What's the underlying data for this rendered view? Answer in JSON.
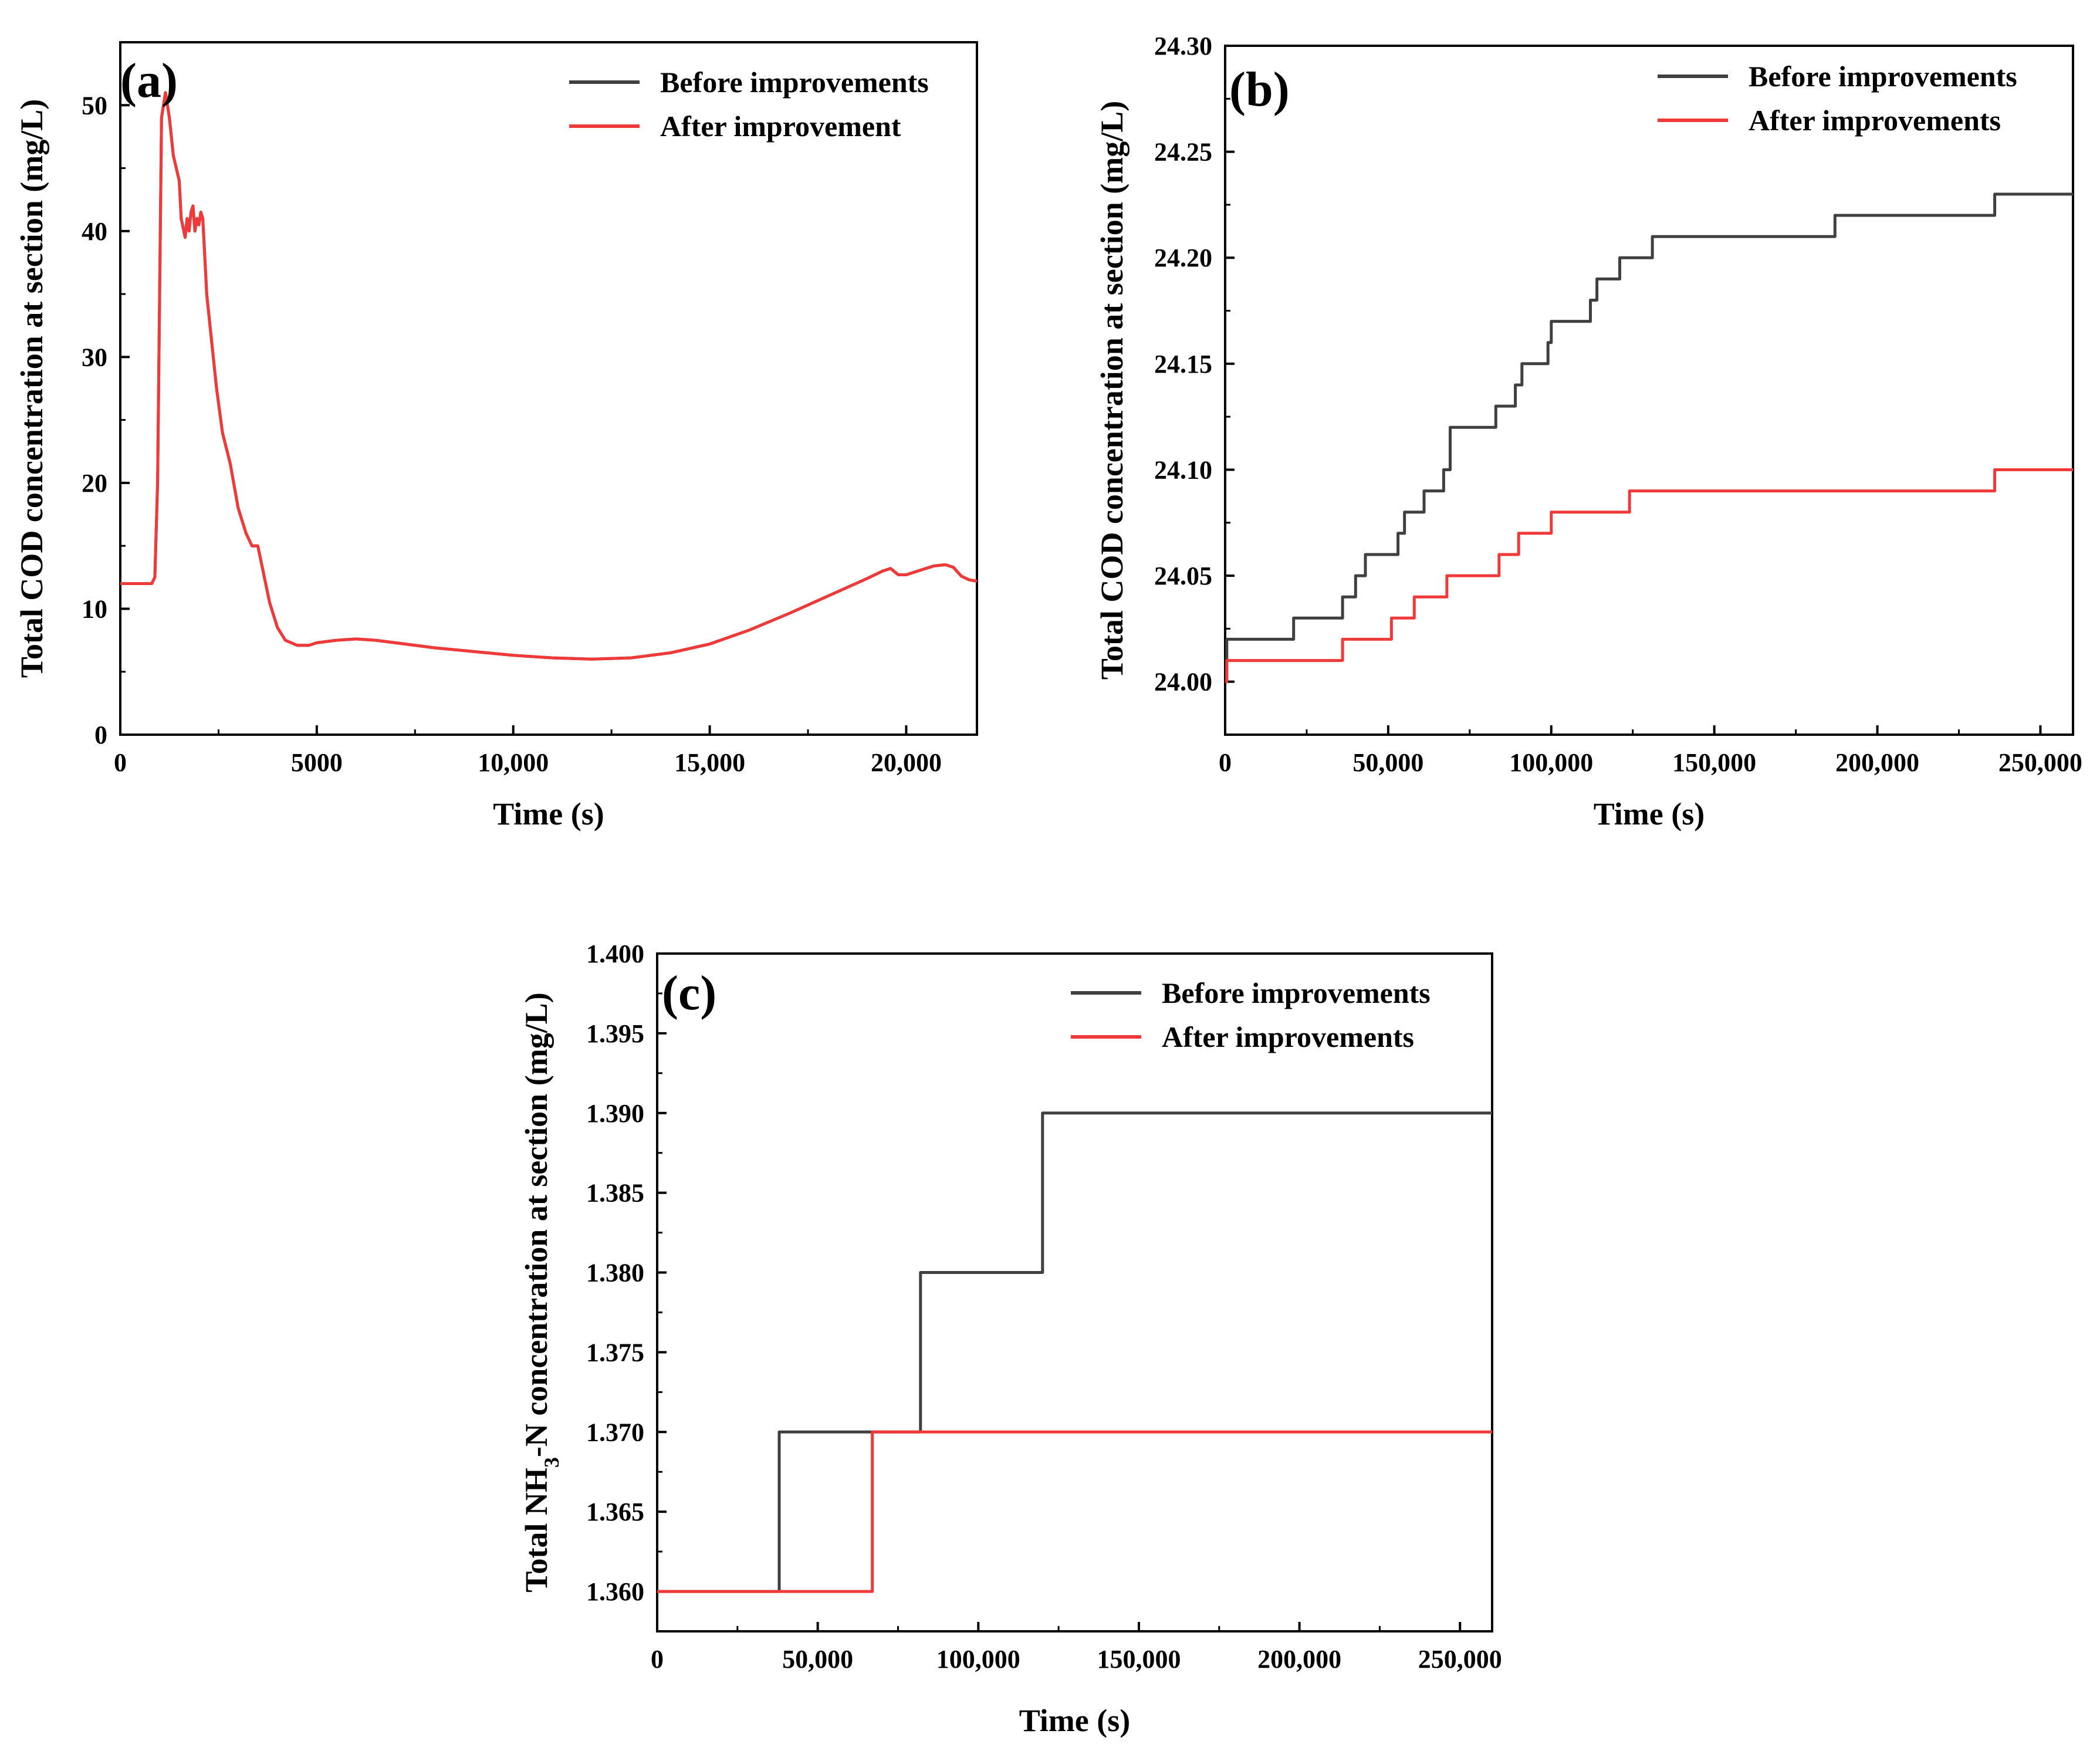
{
  "chart_data": [
    {
      "type": "line",
      "panel_label": "(a)",
      "xlabel": "Time (s)",
      "ylabel": "Total COD concentration at section (mg/L)",
      "xlim": [
        0,
        21800
      ],
      "ylim": [
        0,
        55
      ],
      "x_ticks": [
        0,
        5000,
        10000,
        15000,
        20000
      ],
      "x_tick_labels": [
        "0",
        "5000",
        "10,000",
        "15,000",
        "20,000"
      ],
      "y_ticks": [
        0,
        10,
        20,
        30,
        40,
        50
      ],
      "y_tick_labels": [
        "0",
        "10",
        "20",
        "30",
        "40",
        "50"
      ],
      "legend_position": "top-right",
      "legend": [
        "Before improvements",
        "After improvement"
      ],
      "series": [
        {
          "name": "Before improvements",
          "color": "#404040",
          "step": false,
          "x": [
            0,
            700,
            800,
            880,
            950,
            1050,
            1150,
            1250,
            1350,
            1500,
            1550,
            1650,
            1700,
            1750,
            1800,
            1850,
            1900,
            1950,
            2000,
            2050,
            2100,
            2150,
            2200,
            2300,
            2450,
            2600,
            2800,
            3000,
            3200,
            3350,
            3500,
            3600,
            3700,
            3800,
            4000,
            4200,
            4500,
            4800,
            5000,
            5500,
            6000,
            6500,
            7000,
            8000,
            9000,
            10000,
            11000,
            12000,
            13000,
            14000,
            15000,
            16000,
            17000,
            18000,
            19000,
            19400,
            19600,
            19800,
            20000,
            20400,
            20700,
            21000,
            21200,
            21400,
            21600,
            21800
          ],
          "y": [
            12,
            12,
            12,
            12.5,
            20,
            49,
            51,
            49,
            46,
            44,
            41,
            39.5,
            41,
            40,
            41.5,
            42,
            40,
            41,
            40.5,
            41.5,
            41,
            38,
            35,
            32,
            27.5,
            24,
            21.5,
            18,
            16,
            15,
            15,
            13.5,
            12,
            10.5,
            8.5,
            7.5,
            7.1,
            7.1,
            7.3,
            7.5,
            7.6,
            7.5,
            7.3,
            6.9,
            6.6,
            6.3,
            6.1,
            6.0,
            6.1,
            6.5,
            7.2,
            8.3,
            9.6,
            11,
            12.4,
            13,
            13.2,
            12.7,
            12.7,
            13.1,
            13.4,
            13.5,
            13.3,
            12.6,
            12.3,
            12.2
          ]
        },
        {
          "name": "After improvement",
          "color": "#f03a3a",
          "step": false,
          "x": [
            0,
            700,
            800,
            880,
            950,
            1050,
            1150,
            1250,
            1350,
            1500,
            1550,
            1650,
            1700,
            1750,
            1800,
            1850,
            1900,
            1950,
            2000,
            2050,
            2100,
            2150,
            2200,
            2300,
            2450,
            2600,
            2800,
            3000,
            3200,
            3350,
            3500,
            3600,
            3700,
            3800,
            4000,
            4200,
            4500,
            4800,
            5000,
            5500,
            6000,
            6500,
            7000,
            8000,
            9000,
            10000,
            11000,
            12000,
            13000,
            14000,
            15000,
            16000,
            17000,
            18000,
            19000,
            19400,
            19600,
            19800,
            20000,
            20400,
            20700,
            21000,
            21200,
            21400,
            21600,
            21800
          ],
          "y": [
            12,
            12,
            12,
            12.5,
            20,
            49,
            51,
            49,
            46,
            44,
            41,
            39.5,
            41,
            40,
            41.5,
            42,
            40,
            41,
            40.5,
            41.5,
            41,
            38,
            35,
            32,
            27.5,
            24,
            21.5,
            18,
            16,
            15,
            15,
            13.5,
            12,
            10.5,
            8.5,
            7.5,
            7.1,
            7.1,
            7.3,
            7.5,
            7.6,
            7.5,
            7.3,
            6.9,
            6.6,
            6.3,
            6.1,
            6.0,
            6.1,
            6.5,
            7.2,
            8.3,
            9.6,
            11,
            12.4,
            13,
            13.2,
            12.7,
            12.7,
            13.1,
            13.4,
            13.5,
            13.3,
            12.6,
            12.3,
            12.2
          ]
        }
      ]
    },
    {
      "type": "line",
      "panel_label": "(b)",
      "xlabel": "Time (s)",
      "ylabel": "Total COD concentration at section (mg/L)",
      "xlim": [
        0,
        260000
      ],
      "ylim": [
        23.975,
        24.3
      ],
      "x_ticks": [
        0,
        50000,
        100000,
        150000,
        200000,
        250000
      ],
      "x_tick_labels": [
        "0",
        "50,000",
        "100,000",
        "150,000",
        "200,000",
        "250,000"
      ],
      "y_ticks": [
        24.0,
        24.05,
        24.1,
        24.15,
        24.2,
        24.25,
        24.3
      ],
      "y_tick_labels": [
        "24.00",
        "24.05",
        "24.10",
        "24.15",
        "24.20",
        "24.25",
        "24.30"
      ],
      "legend_position": "top-right",
      "legend": [
        "Before improvements",
        "After improvements"
      ],
      "series": [
        {
          "name": "Before improvements",
          "color": "#404040",
          "step": true,
          "x": [
            0,
            500,
            21000,
            36000,
            38000,
            40000,
            43000,
            53000,
            55000,
            61000,
            67000,
            69000,
            83000,
            89000,
            91000,
            99000,
            100000,
            112000,
            114000,
            117000,
            121000,
            131000,
            187000,
            236000,
            260000
          ],
          "y": [
            24.0,
            24.02,
            24.03,
            24.04,
            24.04,
            24.05,
            24.06,
            24.07,
            24.08,
            24.09,
            24.1,
            24.12,
            24.13,
            24.14,
            24.15,
            24.16,
            24.17,
            24.18,
            24.19,
            24.19,
            24.2,
            24.21,
            24.22,
            24.23,
            24.23
          ]
        },
        {
          "name": "After improvements",
          "color": "#f03a3a",
          "step": true,
          "x": [
            0,
            500,
            36000,
            51000,
            58000,
            68000,
            84000,
            90000,
            100000,
            124000,
            236000,
            260000
          ],
          "y": [
            24.0,
            24.01,
            24.02,
            24.03,
            24.04,
            24.05,
            24.06,
            24.07,
            24.08,
            24.09,
            24.1,
            24.1
          ]
        }
      ]
    },
    {
      "type": "line",
      "panel_label": "(c)",
      "xlabel": "Time (s)",
      "ylabel_parts": [
        "Total NH",
        "3",
        "-N concentration at section (mg/L)"
      ],
      "xlim": [
        0,
        260000
      ],
      "ylim": [
        1.3575,
        1.4
      ],
      "x_ticks": [
        0,
        50000,
        100000,
        150000,
        200000,
        250000
      ],
      "x_tick_labels": [
        "0",
        "50,000",
        "100,000",
        "150,000",
        "200,000",
        "250,000"
      ],
      "y_ticks": [
        1.36,
        1.365,
        1.37,
        1.375,
        1.38,
        1.385,
        1.39,
        1.395,
        1.4
      ],
      "y_tick_labels": [
        "1.360",
        "1.365",
        "1.370",
        "1.375",
        "1.380",
        "1.385",
        "1.390",
        "1.395",
        "1.400"
      ],
      "legend_position": "top-right",
      "legend": [
        "Before improvements",
        "After improvements"
      ],
      "series": [
        {
          "name": "Before improvements",
          "color": "#404040",
          "step": true,
          "x": [
            0,
            38000,
            82000,
            120000,
            260000
          ],
          "y": [
            1.36,
            1.37,
            1.38,
            1.39,
            1.39
          ]
        },
        {
          "name": "After improvements",
          "color": "#f03a3a",
          "step": true,
          "x": [
            0,
            67000,
            260000
          ],
          "y": [
            1.36,
            1.37,
            1.37
          ]
        }
      ]
    }
  ]
}
